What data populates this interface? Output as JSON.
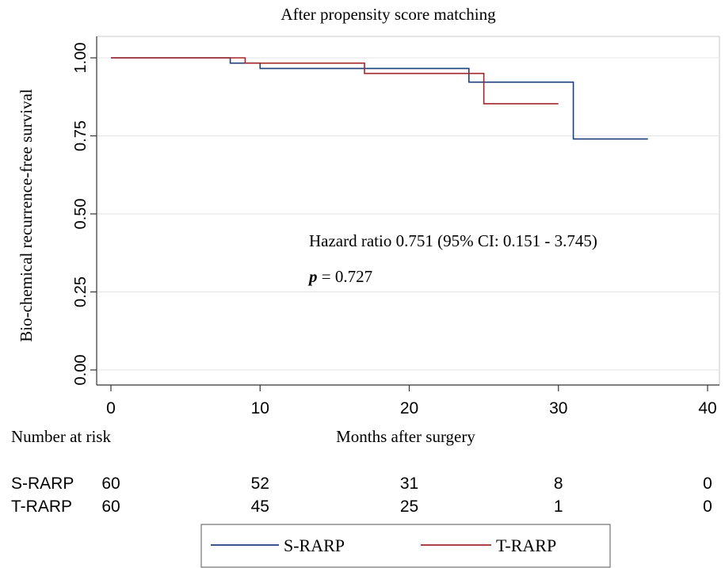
{
  "chart_data": {
    "type": "line",
    "subtype": "kaplan-meier",
    "title": "After propensity score matching",
    "xlabel": "Months after surgery",
    "ylabel": "Bio-chemical recurrence-free survival",
    "xlim": [
      0,
      40
    ],
    "ylim": [
      0,
      1
    ],
    "x_ticks": [
      0,
      10,
      20,
      30,
      40
    ],
    "x_tick_labels": [
      "0",
      "10",
      "20",
      "30",
      "40"
    ],
    "y_ticks": [
      0,
      0.25,
      0.5,
      0.75,
      1.0
    ],
    "y_tick_labels": [
      "0.00",
      "0.25",
      "0.50",
      "0.75",
      "1.00"
    ],
    "grid": true,
    "series": [
      {
        "name": "S-RARP",
        "color": "#1f3f7a",
        "steps": [
          [
            0,
            1.0
          ],
          [
            8,
            0.983
          ],
          [
            10,
            0.966
          ],
          [
            24,
            0.922
          ],
          [
            31,
            0.74
          ],
          [
            36,
            0.74
          ]
        ]
      },
      {
        "name": "T-RARP",
        "color": "#a3262a",
        "steps": [
          [
            0,
            1.0
          ],
          [
            9,
            0.983
          ],
          [
            17,
            0.95
          ],
          [
            25,
            0.853
          ],
          [
            30,
            0.853
          ]
        ]
      }
    ],
    "annotation": {
      "hazard_text": "Hazard ratio 0.751 (95% CI: 0.151 - 3.745)",
      "p_label": "p",
      "p_text": " = 0.727"
    },
    "risk_table": {
      "header": "Number at risk",
      "times": [
        0,
        10,
        20,
        30,
        40
      ],
      "rows": [
        {
          "label": "S-RARP",
          "counts": [
            "60",
            "52",
            "31",
            "8",
            "0"
          ]
        },
        {
          "label": "T-RARP",
          "counts": [
            "60",
            "45",
            "25",
            "1",
            "0"
          ]
        }
      ]
    },
    "legend": {
      "position": "bottom",
      "items": [
        {
          "label": "S-RARP",
          "color": "#1f3f7a"
        },
        {
          "label": "T-RARP",
          "color": "#a3262a"
        }
      ]
    }
  }
}
